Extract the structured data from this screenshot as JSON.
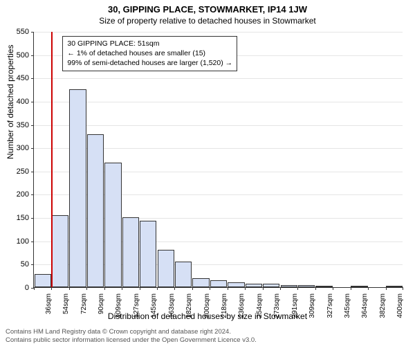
{
  "title": "30, GIPPING PLACE, STOWMARKET, IP14 1JW",
  "subtitle": "Size of property relative to detached houses in Stowmarket",
  "chart": {
    "type": "histogram",
    "ylabel": "Number of detached properties",
    "xlabel": "Distribution of detached houses by size in Stowmarket",
    "background_color": "#ffffff",
    "grid_color": "#e5e5e5",
    "axis_color": "#333333",
    "bar_fill": "#d6e0f5",
    "bar_border": "#333333",
    "marker_color": "#cc0000",
    "ylim": [
      0,
      550
    ],
    "ytick_step": 50,
    "x_categories": [
      "36sqm",
      "54sqm",
      "72sqm",
      "90sqm",
      "109sqm",
      "127sqm",
      "145sqm",
      "163sqm",
      "182sqm",
      "200sqm",
      "218sqm",
      "236sqm",
      "254sqm",
      "273sqm",
      "291sqm",
      "309sqm",
      "327sqm",
      "345sqm",
      "364sqm",
      "382sqm",
      "400sqm"
    ],
    "values": [
      28,
      155,
      425,
      328,
      268,
      150,
      142,
      80,
      55,
      20,
      15,
      10,
      8,
      7,
      5,
      4,
      3,
      0,
      3,
      0,
      3
    ],
    "bar_width": 0.95,
    "marker_x_index": 1,
    "annotation": {
      "line1": "30 GIPPING PLACE: 51sqm",
      "line2": "← 1% of detached houses are smaller (15)",
      "line3": "99% of semi-detached houses are larger (1,520) →"
    }
  },
  "footer": {
    "line1": "Contains HM Land Registry data © Crown copyright and database right 2024.",
    "line2": "Contains public sector information licensed under the Open Government Licence v3.0."
  },
  "style": {
    "title_fontsize": 13,
    "subtitle_fontsize": 12,
    "label_fontsize": 12,
    "tick_fontsize": 11,
    "xtick_fontsize": 10,
    "anno_fontsize": 10.5,
    "footer_fontsize": 9.5
  }
}
